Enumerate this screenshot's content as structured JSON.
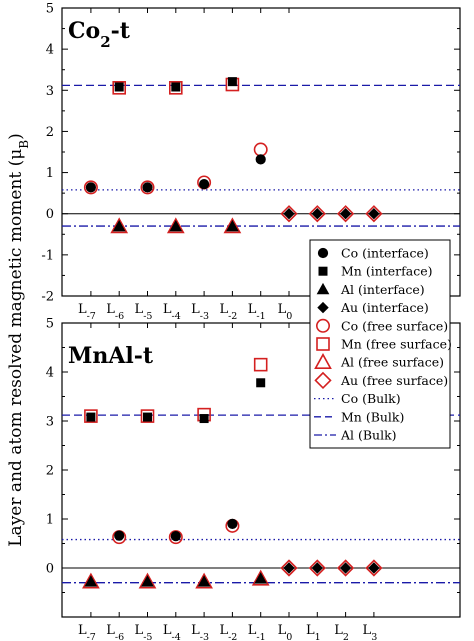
{
  "figure": {
    "ylabel_main": "Layer and atom resolved magnetic moment (μ",
    "ylabel_sub": "B",
    "ylabel_close": ")"
  },
  "colors": {
    "interface": "#000000",
    "free_surface": "#d42020",
    "bulk_lines": "#1a1aa8",
    "zero_line": "#000000"
  },
  "legend": {
    "entries": [
      {
        "label": "Co (interface)",
        "marker": "circle",
        "style": "filled-black"
      },
      {
        "label": "Mn (interface)",
        "marker": "square",
        "style": "filled-black"
      },
      {
        "label": "Al (interface)",
        "marker": "triangle",
        "style": "filled-black"
      },
      {
        "label": "Au (interface)",
        "marker": "diamond",
        "style": "filled-black"
      },
      {
        "label": "Co (free surface)",
        "marker": "circle",
        "style": "open-red"
      },
      {
        "label": "Mn (free surface)",
        "marker": "square",
        "style": "open-red"
      },
      {
        "label": "Al (free surface)",
        "marker": "triangle",
        "style": "open-red"
      },
      {
        "label": "Au (free surface)",
        "marker": "diamond",
        "style": "open-red"
      },
      {
        "label": "Co (Bulk)",
        "marker": "dotted",
        "style": "line"
      },
      {
        "label": "Mn (Bulk)",
        "marker": "dashed",
        "style": "line"
      },
      {
        "label": "Al (Bulk)",
        "marker": "dashdot",
        "style": "line"
      }
    ]
  },
  "chart_data": [
    {
      "type": "scatter",
      "title": "Co",
      "title_sub": "2",
      "title_suffix": "-t",
      "ylim": [
        -2,
        5
      ],
      "yticks": [
        "-2",
        "-1",
        "0",
        "1",
        "2",
        "3",
        "4",
        "5"
      ],
      "xlabels": [
        {
          "base": "L",
          "sub": "-7"
        },
        {
          "base": "L",
          "sub": "-6"
        },
        {
          "base": "L",
          "sub": "-5"
        },
        {
          "base": "L",
          "sub": "-4"
        },
        {
          "base": "L",
          "sub": "-3"
        },
        {
          "base": "L",
          "sub": "-2"
        },
        {
          "base": "L",
          "sub": "-1"
        },
        {
          "base": "L",
          "sub": "0"
        }
      ],
      "bulk": {
        "Co": 0.58,
        "Mn": 3.12,
        "Al": -0.3
      },
      "series": [
        {
          "name": "Co (interface)",
          "x": [
            "L-7",
            "L-5",
            "L-3",
            "L-1"
          ],
          "values": [
            0.64,
            0.64,
            0.72,
            1.32
          ]
        },
        {
          "name": "Mn (interface)",
          "x": [
            "L-6",
            "L-4",
            "L-2"
          ],
          "values": [
            3.08,
            3.08,
            3.21
          ]
        },
        {
          "name": "Al (interface)",
          "x": [
            "L-6",
            "L-4",
            "L-2"
          ],
          "values": [
            -0.31,
            -0.31,
            -0.31
          ]
        },
        {
          "name": "Au (interface)",
          "x": [
            "L0",
            "L1",
            "L2",
            "L3"
          ],
          "values": [
            0.0,
            0.0,
            0.0,
            0.0
          ]
        },
        {
          "name": "Co (free surface)",
          "x": [
            "L-7",
            "L-5",
            "L-3",
            "L-1"
          ],
          "values": [
            0.64,
            0.64,
            0.76,
            1.56
          ]
        },
        {
          "name": "Mn (free surface)",
          "x": [
            "L-6",
            "L-4",
            "L-2"
          ],
          "values": [
            3.06,
            3.06,
            3.14
          ]
        },
        {
          "name": "Al (free surface)",
          "x": [
            "L-6",
            "L-4",
            "L-2"
          ],
          "values": [
            -0.31,
            -0.31,
            -0.31
          ]
        },
        {
          "name": "Au (free surface)",
          "x": [
            "L0",
            "L1",
            "L2",
            "L3"
          ],
          "values": [
            0.0,
            0.0,
            0.0,
            0.0
          ]
        }
      ]
    },
    {
      "type": "scatter",
      "title": "MnAl-t",
      "title_sub": "",
      "title_suffix": "",
      "ylim": [
        -1,
        5
      ],
      "yticks": [
        "0",
        "1",
        "2",
        "3",
        "4",
        "5"
      ],
      "xlabels": [
        {
          "base": "L",
          "sub": "-7"
        },
        {
          "base": "L",
          "sub": "-6"
        },
        {
          "base": "L",
          "sub": "-5"
        },
        {
          "base": "L",
          "sub": "-4"
        },
        {
          "base": "L",
          "sub": "-3"
        },
        {
          "base": "L",
          "sub": "-2"
        },
        {
          "base": "L",
          "sub": "-1"
        },
        {
          "base": "L",
          "sub": "0"
        },
        {
          "base": "L",
          "sub": "1"
        },
        {
          "base": "L",
          "sub": "2"
        },
        {
          "base": "L",
          "sub": "3"
        }
      ],
      "bulk": {
        "Co": 0.58,
        "Mn": 3.12,
        "Al": -0.3
      },
      "series": [
        {
          "name": "Co (interface)",
          "x": [
            "L-6",
            "L-4",
            "L-2"
          ],
          "values": [
            0.66,
            0.65,
            0.9
          ]
        },
        {
          "name": "Mn (interface)",
          "x": [
            "L-7",
            "L-5",
            "L-3",
            "L-1"
          ],
          "values": [
            3.08,
            3.08,
            3.05,
            3.78
          ]
        },
        {
          "name": "Al (interface)",
          "x": [
            "L-7",
            "L-5",
            "L-3",
            "L-1"
          ],
          "values": [
            -0.28,
            -0.28,
            -0.28,
            -0.22
          ]
        },
        {
          "name": "Au (interface)",
          "x": [
            "L0",
            "L1",
            "L2",
            "L3"
          ],
          "values": [
            0.0,
            0.0,
            0.0,
            0.0
          ]
        },
        {
          "name": "Co (free surface)",
          "x": [
            "L-6",
            "L-4",
            "L-2"
          ],
          "values": [
            0.63,
            0.63,
            0.86
          ]
        },
        {
          "name": "Mn (free surface)",
          "x": [
            "L-7",
            "L-5",
            "L-3",
            "L-1"
          ],
          "values": [
            3.1,
            3.1,
            3.13,
            4.15
          ]
        },
        {
          "name": "Al (free surface)",
          "x": [
            "L-7",
            "L-5",
            "L-3",
            "L-1"
          ],
          "values": [
            -0.28,
            -0.28,
            -0.28,
            -0.22
          ]
        },
        {
          "name": "Au (free surface)",
          "x": [
            "L0",
            "L1",
            "L2",
            "L3"
          ],
          "values": [
            0.0,
            0.0,
            0.0,
            0.0
          ]
        }
      ]
    }
  ]
}
